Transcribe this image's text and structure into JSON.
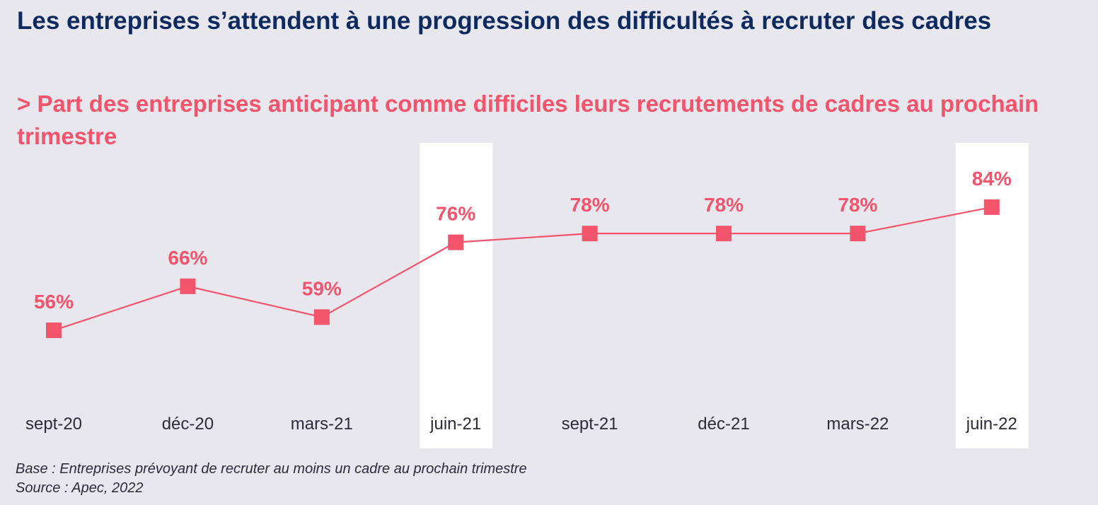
{
  "title": "Les entreprises s’attendent à une progression des difficultés à recruter des cadres",
  "subtitle": "> Part des entreprises anticipant comme difficiles leurs recrutements de cadres au prochain trimestre",
  "footer": {
    "base": "Base : Entreprises prévoyant de recruter au moins un cadre au prochain trimestre",
    "source": "Source : Apec, 2022"
  },
  "colors": {
    "background": "#e9e7ee",
    "title": "#0f2a5f",
    "accent": "#f2546c",
    "highlight": "#ffffff",
    "tick_text": "#2b2b3a"
  },
  "chart_data": {
    "type": "line",
    "categories": [
      "sept-20",
      "déc-20",
      "mars-21",
      "juin-21",
      "sept-21",
      "déc-21",
      "mars-22",
      "juin-22"
    ],
    "values": [
      56,
      66,
      59,
      76,
      78,
      78,
      78,
      84
    ],
    "data_labels": [
      "56%",
      "66%",
      "59%",
      "76%",
      "78%",
      "78%",
      "78%",
      "84%"
    ],
    "highlighted_categories": [
      "juin-21",
      "juin-22"
    ],
    "marker": "square",
    "grid": false,
    "legend": "none"
  }
}
